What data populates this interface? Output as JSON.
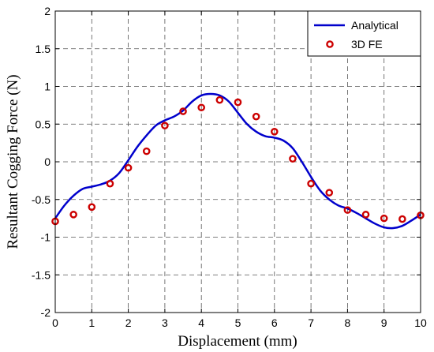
{
  "chart_data": {
    "type": "line",
    "title": "",
    "xlabel": "Displacement (mm)",
    "ylabel": "Resultant Cogging Force (N)",
    "xlim": [
      0,
      10
    ],
    "ylim": [
      -2,
      2
    ],
    "xticks": [
      0,
      1,
      2,
      3,
      4,
      5,
      6,
      7,
      8,
      9,
      10
    ],
    "yticks": [
      -2,
      -1.5,
      -1,
      -0.5,
      0,
      0.5,
      1,
      1.5,
      2
    ],
    "xtick_labels": [
      "0",
      "1",
      "2",
      "3",
      "4",
      "5",
      "6",
      "7",
      "8",
      "9",
      "10"
    ],
    "ytick_labels": [
      "-2",
      "-1.5",
      "-1",
      "-0.5",
      "0",
      "0.5",
      "1",
      "1.5",
      "2"
    ],
    "grid": true,
    "legend_position": "top-right",
    "series": [
      {
        "name": "Analytical",
        "kind": "line",
        "color": "#0000cc",
        "x": [
          0,
          0.25,
          0.5,
          0.75,
          1,
          1.25,
          1.5,
          1.75,
          2,
          2.25,
          2.5,
          2.75,
          3,
          3.25,
          3.5,
          3.75,
          4,
          4.25,
          4.5,
          4.75,
          5,
          5.25,
          5.5,
          5.75,
          6,
          6.25,
          6.5,
          6.75,
          7,
          7.25,
          7.5,
          7.75,
          8,
          8.25,
          8.5,
          8.75,
          9,
          9.25,
          9.5,
          9.75,
          10
        ],
        "y": [
          -0.75,
          -0.58,
          -0.45,
          -0.36,
          -0.33,
          -0.3,
          -0.25,
          -0.15,
          0.02,
          0.2,
          0.35,
          0.48,
          0.55,
          0.6,
          0.68,
          0.8,
          0.88,
          0.9,
          0.88,
          0.8,
          0.65,
          0.5,
          0.4,
          0.34,
          0.32,
          0.28,
          0.18,
          0.0,
          -0.2,
          -0.38,
          -0.5,
          -0.58,
          -0.62,
          -0.68,
          -0.75,
          -0.82,
          -0.87,
          -0.88,
          -0.85,
          -0.78,
          -0.7
        ]
      },
      {
        "name": "3D FE",
        "kind": "marker",
        "color": "#cc0000",
        "x": [
          0,
          0.5,
          1,
          1.5,
          2,
          2.5,
          3,
          3.5,
          4,
          4.5,
          5,
          5.5,
          6,
          6.5,
          7,
          7.5,
          8,
          8.5,
          9,
          9.5,
          10
        ],
        "y": [
          -0.79,
          -0.7,
          -0.6,
          -0.29,
          -0.08,
          0.14,
          0.48,
          0.67,
          0.72,
          0.82,
          0.79,
          0.6,
          0.4,
          0.04,
          -0.29,
          -0.41,
          -0.64,
          -0.7,
          -0.75,
          -0.76,
          -0.71
        ]
      }
    ]
  }
}
